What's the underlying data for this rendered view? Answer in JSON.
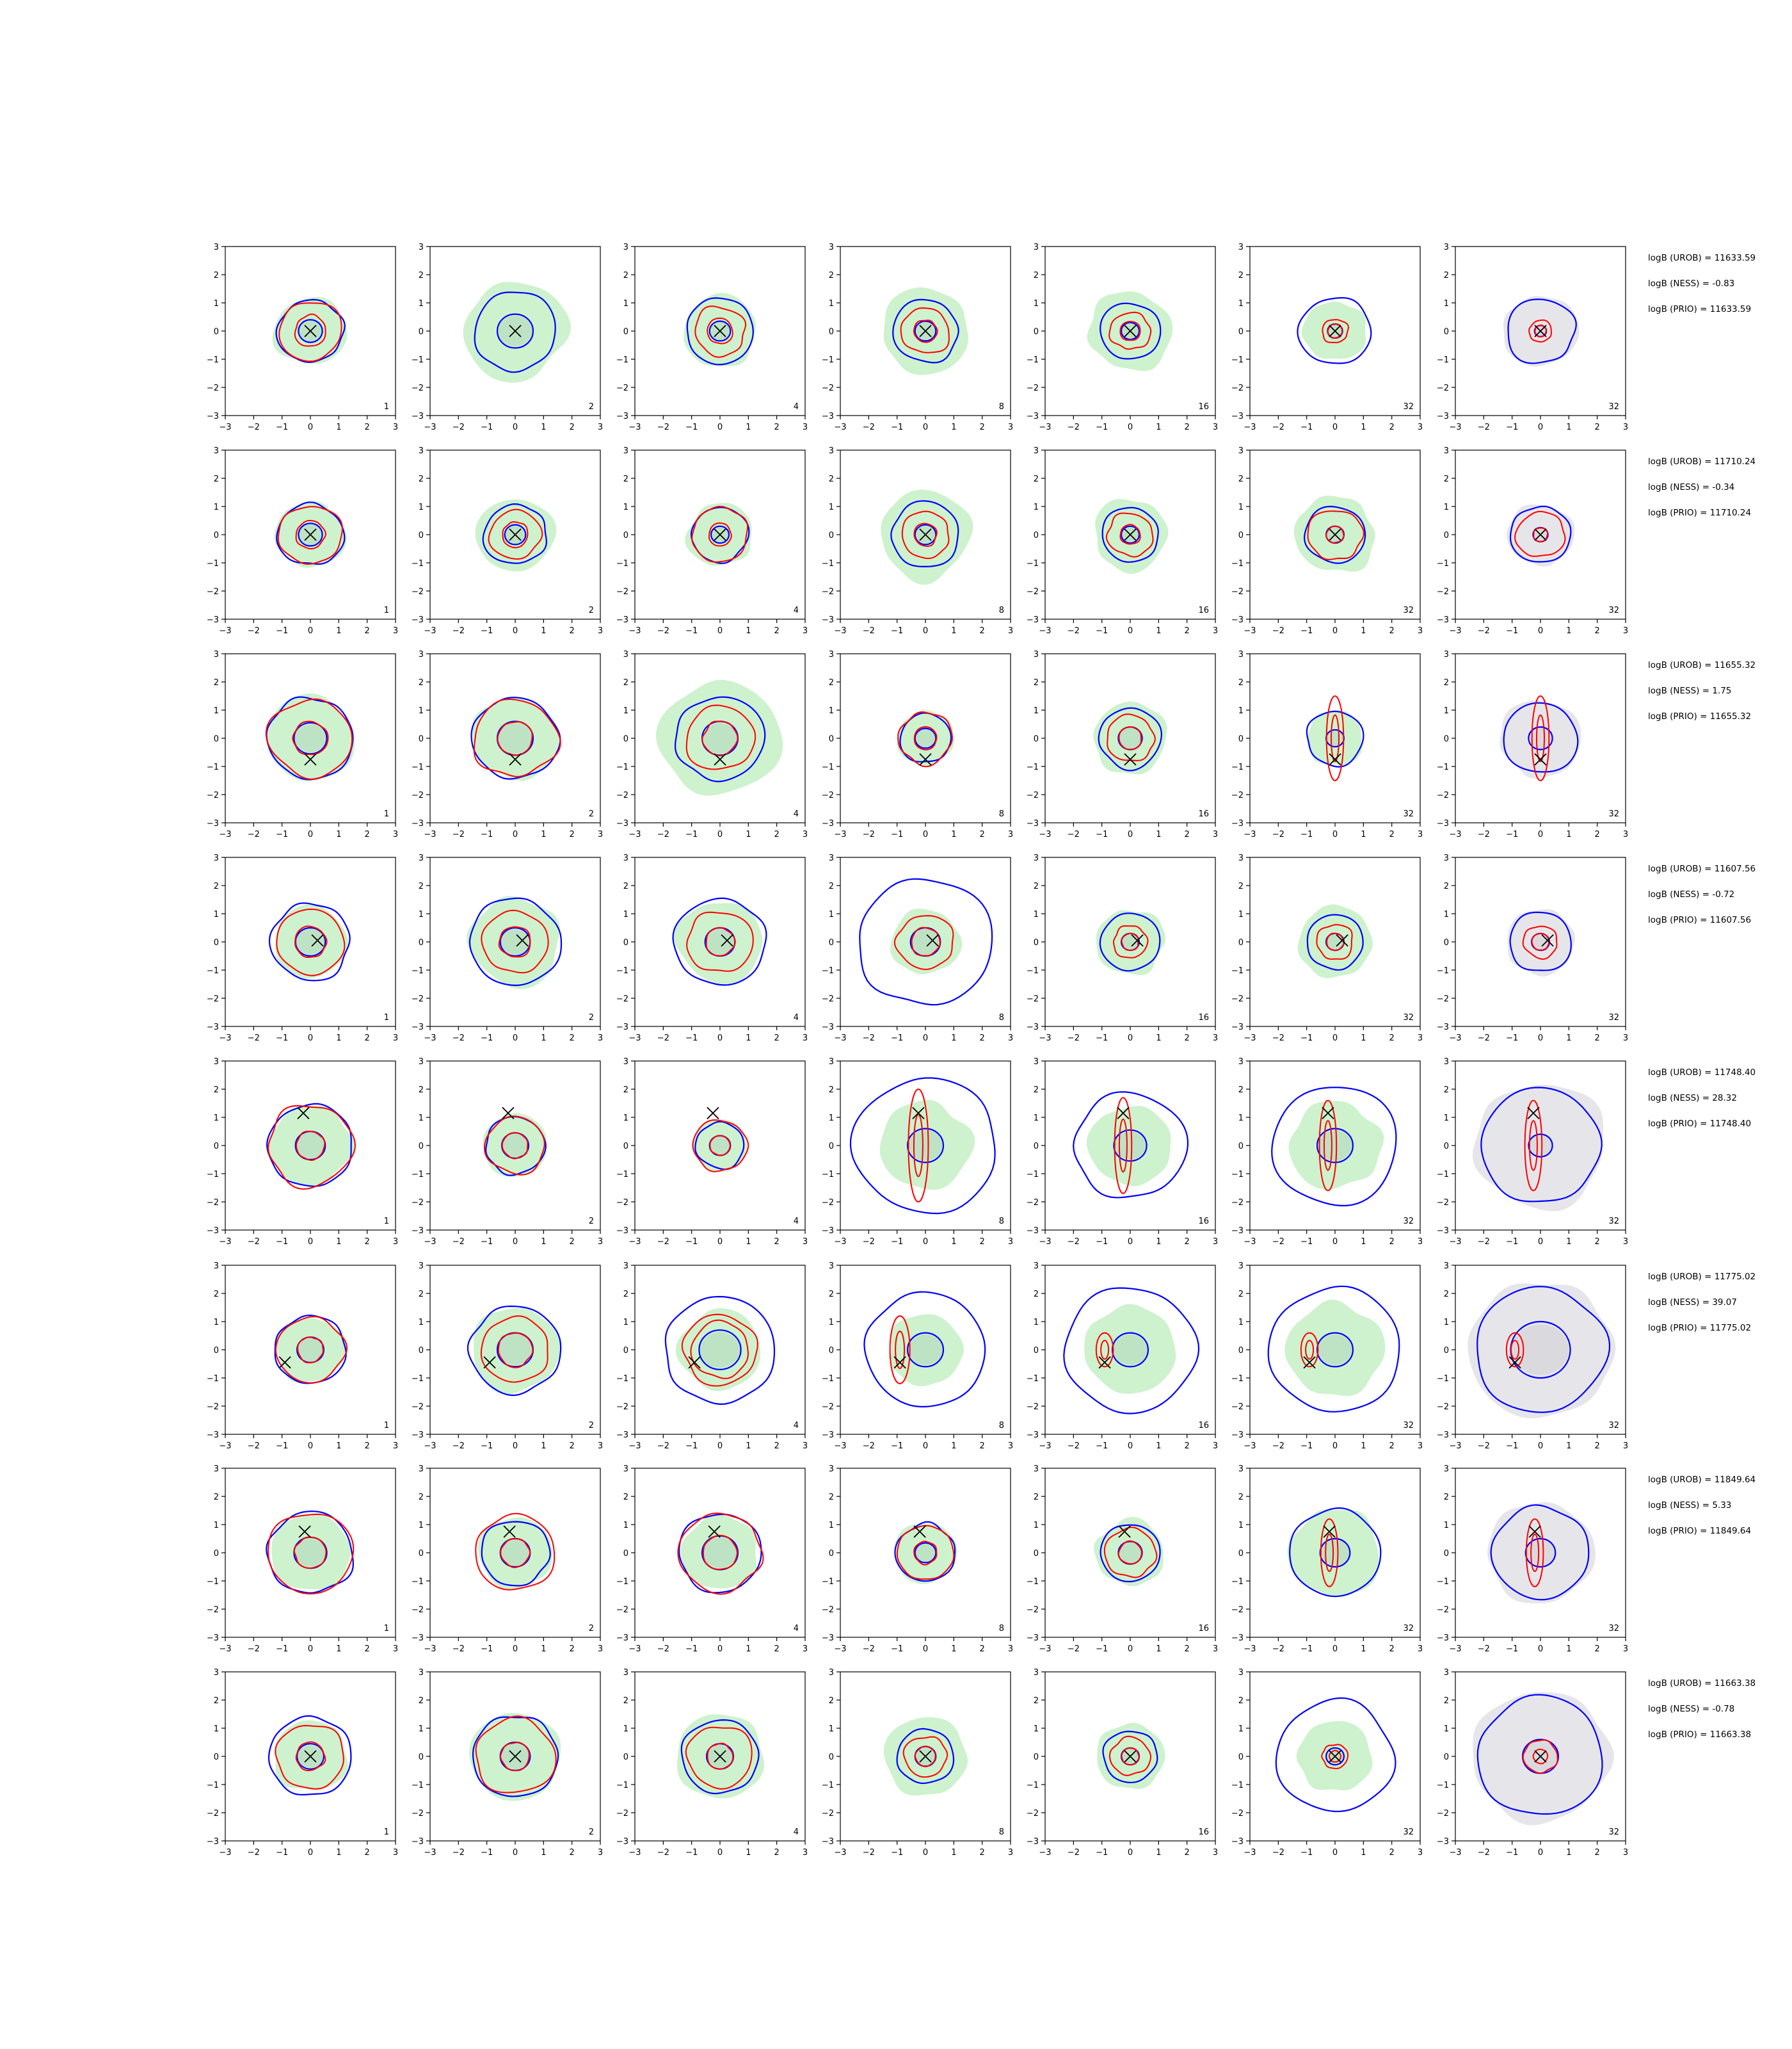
{
  "chart_data": {
    "type": "contour-grid",
    "xlim": [
      -3,
      3
    ],
    "ylim": [
      -3,
      3
    ],
    "ticks": [
      "−3",
      "−2",
      "−1",
      "0",
      "1",
      "2",
      "3"
    ],
    "tick_values": [
      -3,
      -2,
      -1,
      0,
      1,
      2,
      3
    ],
    "colors": {
      "blue": "#0000ff",
      "red": "#ff0000",
      "green_fill": "#cdf2cd",
      "grey_fill": "#e6e6ea",
      "inner_fill": "#b8dcc0",
      "marker": "#000000"
    },
    "rows": [
      {
        "stats": [
          "logB (UROB) = 11633.59",
          "logB (NESS) = -0.83",
          "logB (PRIO) = 11633.59"
        ],
        "marker": [
          0,
          0
        ],
        "panels": [
          {
            "label": "1",
            "green": 1.25,
            "blue": 1.15,
            "red": [
              1.1,
              0.55
            ],
            "core": 0.4,
            "grey": false
          },
          {
            "label": "2",
            "green": 1.8,
            "blue": 1.45,
            "red": [],
            "core": 0.6,
            "grey": false
          },
          {
            "label": "4",
            "green": 1.3,
            "blue": 1.2,
            "red": [
              0.9,
              0.45
            ],
            "core": 0.35,
            "grey": false
          },
          {
            "label": "8",
            "green": 1.55,
            "blue": 1.15,
            "red": [
              0.85,
              0.4
            ],
            "core": 0.35,
            "grey": false
          },
          {
            "label": "16",
            "green": 1.45,
            "blue": 1.05,
            "red": [
              0.7,
              0.35
            ],
            "core": 0.3,
            "grey": false
          },
          {
            "label": "32",
            "green": 1.1,
            "blue": 1.25,
            "red": [
              0.45,
              0.25
            ],
            "core": 0.25,
            "grey": false
          },
          {
            "label": "32",
            "green": 0,
            "blue": 1.2,
            "red": [
              0.4,
              0.2
            ],
            "core": 0.2,
            "grey": true
          }
        ]
      },
      {
        "stats": [
          "logB (UROB) = 11710.24",
          "logB (NESS) = -0.34",
          "logB (PRIO) = 11710.24"
        ],
        "marker": [
          0,
          0
        ],
        "panels": [
          {
            "label": "1",
            "green": 1.2,
            "blue": 1.15,
            "red": [
              1.1,
              0.5
            ],
            "core": 0.4,
            "grey": false
          },
          {
            "label": "2",
            "green": 1.35,
            "blue": 1.1,
            "red": [
              0.9,
              0.45
            ],
            "core": 0.35,
            "grey": false
          },
          {
            "label": "4",
            "green": 1.15,
            "blue": 1.0,
            "red": [
              1.0,
              0.4
            ],
            "core": 0.3,
            "grey": false
          },
          {
            "label": "8",
            "green": 1.6,
            "blue": 1.2,
            "red": [
              0.85,
              0.4
            ],
            "core": 0.35,
            "grey": false
          },
          {
            "label": "16",
            "green": 1.3,
            "blue": 1.0,
            "red": [
              0.8,
              0.35
            ],
            "core": 0.3,
            "grey": false
          },
          {
            "label": "32",
            "green": 1.4,
            "blue": 1.05,
            "red": [
              0.95,
              0.3
            ],
            "core": 0.3,
            "grey": false
          },
          {
            "label": "32",
            "green": 0,
            "blue": 1.05,
            "red": [
              0.85,
              0.25
            ],
            "core": 0.25,
            "grey": true
          }
        ]
      },
      {
        "stats": [
          "logB (UROB) = 11655.32",
          "logB (NESS) = 1.75",
          "logB (PRIO) = 11655.32"
        ],
        "marker": [
          0,
          -0.75
        ],
        "panels": [
          {
            "label": "1",
            "green": 1.55,
            "blue": 1.5,
            "red": [
              1.45,
              0.6
            ],
            "core": 0.55,
            "grey": false
          },
          {
            "label": "2",
            "green": 1.5,
            "blue": 1.5,
            "red": [
              1.45,
              0.6
            ],
            "core": 0.6,
            "grey": false
          },
          {
            "label": "4",
            "green": 2.1,
            "blue": 1.55,
            "red": [
              1.2,
              0.6
            ],
            "core": 0.6,
            "grey": false
          },
          {
            "label": "8",
            "green": 1.0,
            "blue": 0.9,
            "red": [
              0.95,
              0.4
            ],
            "core": 0.35,
            "grey": false
          },
          {
            "label": "16",
            "green": 1.3,
            "blue": 1.1,
            "red": [
              0.85,
              0.4
            ],
            "core": 0.4,
            "grey": false
          },
          {
            "label": "32",
            "green": 1.0,
            "blue": 1.0,
            "red": [
              0.3,
              1.5
            ],
            "core": 0.3,
            "grey": false
          },
          {
            "label": "32",
            "green": 0,
            "blue": 1.3,
            "red": [
              0.3,
              1.5
            ],
            "core": 0.4,
            "grey": true
          }
        ]
      },
      {
        "stats": [
          "logB (UROB) = 11607.56",
          "logB (NESS) = -0.72",
          "logB (PRIO) = 11607.56"
        ],
        "marker": [
          0.25,
          0.05
        ],
        "panels": [
          {
            "label": "1",
            "green": 1.3,
            "blue": 1.4,
            "red": [
              1.2,
              0.55
            ],
            "core": 0.5,
            "grey": false
          },
          {
            "label": "2",
            "green": 1.6,
            "blue": 1.6,
            "red": [
              1.15,
              0.55
            ],
            "core": 0.5,
            "grey": false
          },
          {
            "label": "4",
            "green": 1.5,
            "blue": 1.6,
            "red": [
              1.15,
              0.5
            ],
            "core": 0.5,
            "grey": false
          },
          {
            "label": "8",
            "green": 1.2,
            "blue": 2.35,
            "red": [
              1.0,
              0.5
            ],
            "core": 0.5,
            "grey": false
          },
          {
            "label": "16",
            "green": 1.2,
            "blue": 1.05,
            "red": [
              0.6,
              0.3
            ],
            "core": 0.3,
            "grey": false
          },
          {
            "label": "32",
            "green": 1.3,
            "blue": 1.0,
            "red": [
              0.65,
              0.3
            ],
            "core": 0.3,
            "grey": false
          },
          {
            "label": "32",
            "green": 0,
            "blue": 1.1,
            "red": [
              0.6,
              0.3
            ],
            "core": 0.3,
            "grey": true
          }
        ]
      },
      {
        "stats": [
          "logB (UROB) = 11748.40",
          "logB (NESS) = 28.32",
          "logB (PRIO) = 11748.40"
        ],
        "marker": [
          -0.25,
          1.15
        ],
        "panels": [
          {
            "label": "1",
            "green": 1.45,
            "blue": 1.5,
            "red": [
              1.5,
              0.5
            ],
            "core": 0.5,
            "grey": false
          },
          {
            "label": "2",
            "green": 1.15,
            "blue": 1.05,
            "red": [
              1.05,
              0.45
            ],
            "core": 0.45,
            "grey": false
          },
          {
            "label": "4",
            "green": 0.95,
            "blue": 0.85,
            "red": [
              0.95,
              0.35
            ],
            "core": 0.35,
            "grey": false
          },
          {
            "label": "8",
            "green": 1.6,
            "blue": 2.5,
            "red": [
              0.35,
              2.0
            ],
            "core": 0.6,
            "grey": false
          },
          {
            "label": "16",
            "green": 1.45,
            "blue": 1.95,
            "red": [
              0.3,
              1.7
            ],
            "core": 0.55,
            "grey": false
          },
          {
            "label": "32",
            "green": 1.6,
            "blue": 2.2,
            "red": [
              0.3,
              1.6
            ],
            "core": 0.6,
            "grey": false
          },
          {
            "label": "32",
            "green": 0,
            "blue": 2.1,
            "red": [
              0.3,
              1.6
            ],
            "core": 0.4,
            "grey": true
          }
        ]
      },
      {
        "stats": [
          "logB (UROB) = 11775.02",
          "logB (NESS) = 39.07",
          "logB (PRIO) = 11775.02"
        ],
        "marker": [
          -0.9,
          -0.45
        ],
        "panels": [
          {
            "label": "1",
            "green": 1.2,
            "blue": 1.25,
            "red": [
              1.2,
              0.45
            ],
            "core": 0.45,
            "grey": false
          },
          {
            "label": "2",
            "green": 1.55,
            "blue": 1.6,
            "red": [
              1.2,
              0.6
            ],
            "core": 0.6,
            "grey": false
          },
          {
            "label": "4",
            "green": 1.45,
            "blue": 1.95,
            "red": [
              1.3,
              1.0
            ],
            "core": 0.7,
            "grey": false
          },
          {
            "label": "8",
            "green": 1.3,
            "blue": 2.1,
            "red": [
              0.35,
              1.2
            ],
            "core": 0.6,
            "grey": false
          },
          {
            "label": "16",
            "green": 1.6,
            "blue": 2.3,
            "red": [
              0.3,
              0.6
            ],
            "core": 0.6,
            "grey": false
          },
          {
            "label": "32",
            "green": 1.7,
            "blue": 2.3,
            "red": [
              0.3,
              0.6
            ],
            "core": 0.6,
            "grey": false
          },
          {
            "label": "32",
            "green": 0,
            "blue": 2.3,
            "red": [
              0.3,
              0.6
            ],
            "core": 1.0,
            "grey": true
          }
        ]
      },
      {
        "stats": [
          "logB (UROB) = 11849.64",
          "logB (NESS) = 5.33",
          "logB (PRIO) = 11849.64"
        ],
        "marker": [
          -0.2,
          0.75
        ],
        "panels": [
          {
            "label": "1",
            "green": 1.4,
            "blue": 1.5,
            "red": [
              1.5,
              0.55
            ],
            "core": 0.55,
            "grey": false
          },
          {
            "label": "2",
            "green": 1.3,
            "blue": 1.2,
            "red": [
              1.4,
              0.5
            ],
            "core": 0.5,
            "grey": false
          },
          {
            "label": "4",
            "green": 1.35,
            "blue": 1.45,
            "red": [
              1.45,
              0.6
            ],
            "core": 0.6,
            "grey": false
          },
          {
            "label": "8",
            "green": 1.1,
            "blue": 1.05,
            "red": [
              1.0,
              0.4
            ],
            "core": 0.35,
            "grey": false
          },
          {
            "label": "16",
            "green": 1.2,
            "blue": 1.05,
            "red": [
              0.9,
              0.4
            ],
            "core": 0.4,
            "grey": false
          },
          {
            "label": "32",
            "green": 1.6,
            "blue": 1.6,
            "red": [
              0.3,
              1.2
            ],
            "core": 0.5,
            "grey": false
          },
          {
            "label": "32",
            "green": 0,
            "blue": 1.7,
            "red": [
              0.3,
              1.2
            ],
            "core": 0.5,
            "grey": true
          }
        ]
      },
      {
        "stats": [
          "logB (UROB) = 11663.38",
          "logB (NESS) = -0.78",
          "logB (PRIO) = 11663.38"
        ],
        "marker": [
          0,
          0
        ],
        "panels": [
          {
            "label": "1",
            "green": 1.3,
            "blue": 1.45,
            "red": [
              1.2,
              0.5
            ],
            "core": 0.45,
            "grey": false
          },
          {
            "label": "2",
            "green": 1.6,
            "blue": 1.5,
            "red": [
              1.4,
              0.5
            ],
            "core": 0.5,
            "grey": false
          },
          {
            "label": "4",
            "green": 1.55,
            "blue": 1.35,
            "red": [
              1.15,
              0.45
            ],
            "core": 0.45,
            "grey": false
          },
          {
            "label": "8",
            "green": 1.45,
            "blue": 1.0,
            "red": [
              0.75,
              0.35
            ],
            "core": 0.35,
            "grey": false
          },
          {
            "label": "16",
            "green": 1.2,
            "blue": 0.95,
            "red": [
              0.7,
              0.3
            ],
            "core": 0.3,
            "grey": false
          },
          {
            "label": "32",
            "green": 1.3,
            "blue": 2.05,
            "red": [
              0.45,
              0.2
            ],
            "core": 0.3,
            "grey": false
          },
          {
            "label": "32",
            "green": 0,
            "blue": 2.2,
            "red": [
              0.6,
              0.25
            ],
            "core": 0.6,
            "grey": true
          }
        ]
      }
    ]
  }
}
